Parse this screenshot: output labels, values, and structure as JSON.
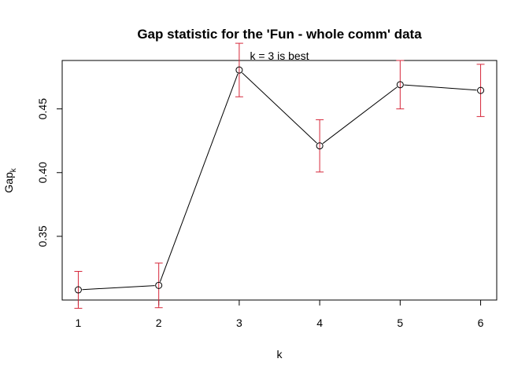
{
  "chart_data": {
    "type": "line",
    "title": "Gap statistic for the 'Fun - whole comm' data",
    "subtitle": "k = 3 is best",
    "xlabel": "k",
    "ylabel_main": "Gap",
    "ylabel_sub": "k",
    "x": [
      1,
      2,
      3,
      4,
      5,
      6
    ],
    "y": [
      0.308,
      0.3115,
      0.4805,
      0.421,
      0.469,
      0.4645
    ],
    "se": [
      0.0145,
      0.0175,
      0.021,
      0.0205,
      0.019,
      0.0205
    ],
    "x_ticks": [
      1,
      2,
      3,
      4,
      5,
      6
    ],
    "x_tick_labels": [
      "1",
      "2",
      "3",
      "4",
      "5",
      "6"
    ],
    "y_ticks": [
      0.35,
      0.4,
      0.45
    ],
    "y_tick_labels": [
      "0.35",
      "0.40",
      "0.45"
    ],
    "xlim": [
      0.8,
      6.2
    ],
    "ylim": [
      0.3,
      0.488
    ],
    "grid": false,
    "legend": "none",
    "colors": {
      "line": "#000000",
      "points": "#000000",
      "error_bars": "#d6273a",
      "axes": "#000000"
    }
  }
}
